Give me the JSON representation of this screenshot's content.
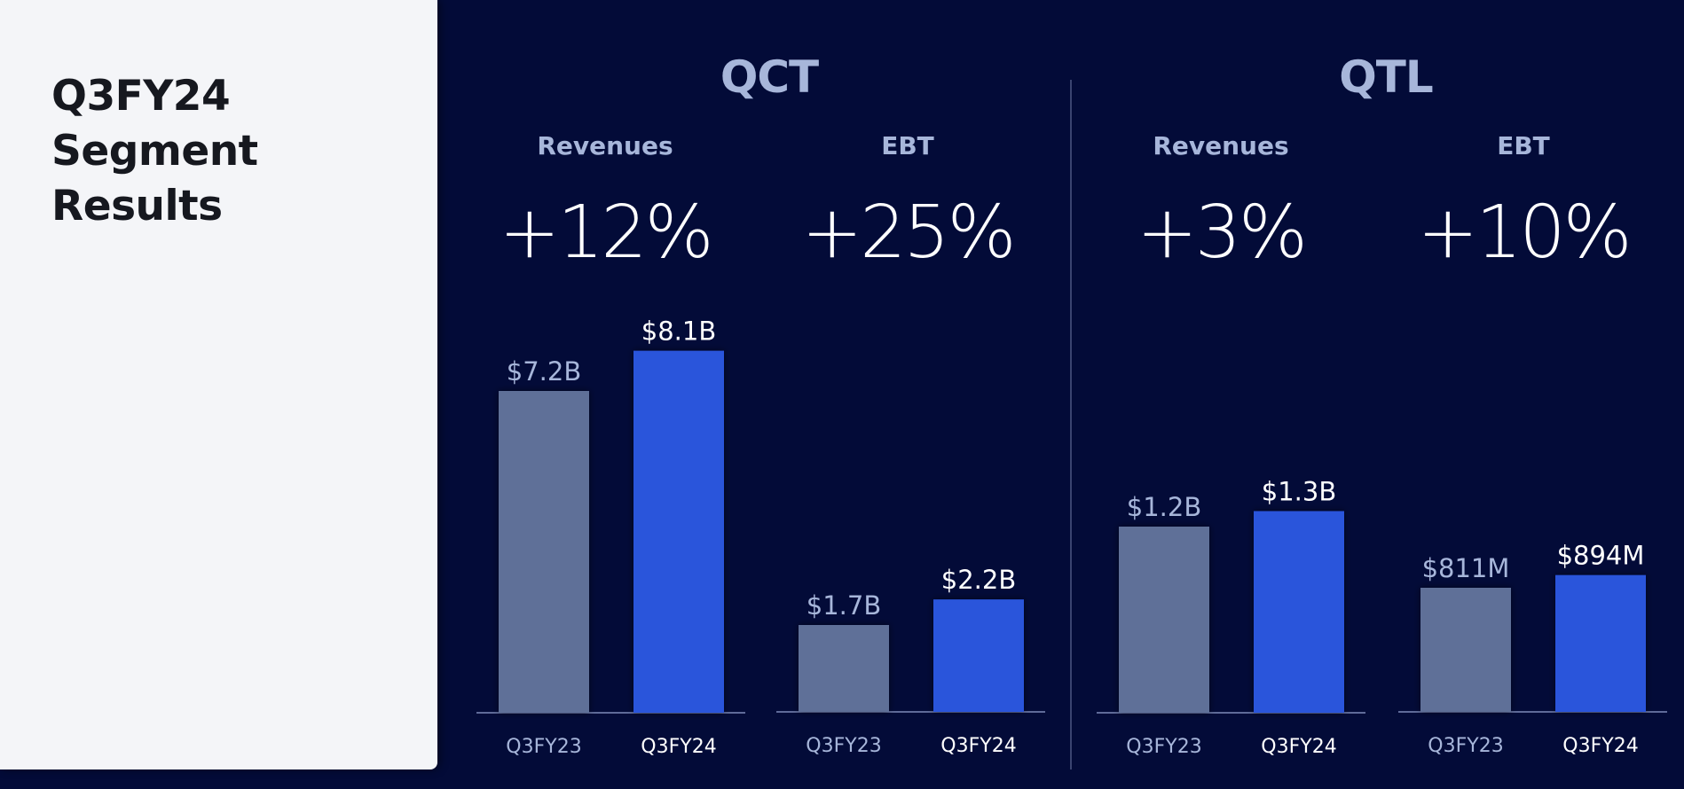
{
  "slide": {
    "title_lines": [
      "Q3FY24",
      "Segment",
      "Results"
    ]
  },
  "colors": {
    "background": "#030b38",
    "panel": "#f4f5f8",
    "prior_bar": "#5f7098",
    "current_bar": "#2b55db",
    "prior_label": "#a7b6da",
    "current_label": "#ffffff",
    "baseline": "#5f6b99"
  },
  "segments": [
    {
      "name": "QCT",
      "metrics": [
        {
          "name": "Revenues",
          "growth": "+12%"
        },
        {
          "name": "EBT",
          "growth": "+25%"
        }
      ]
    },
    {
      "name": "QTL",
      "metrics": [
        {
          "name": "Revenues",
          "growth": "+3%"
        },
        {
          "name": "EBT",
          "growth": "+10%"
        }
      ]
    }
  ],
  "chart_data": [
    {
      "type": "bar",
      "segment": "QCT",
      "title": "Revenues",
      "categories": [
        "Q3FY23",
        "Q3FY24"
      ],
      "values": [
        7.2,
        8.1
      ],
      "unit": "B",
      "data_labels": [
        "$7.2B",
        "$8.1B"
      ]
    },
    {
      "type": "bar",
      "segment": "QCT",
      "title": "EBT",
      "categories": [
        "Q3FY23",
        "Q3FY24"
      ],
      "values": [
        1.7,
        2.2
      ],
      "unit": "B",
      "data_labels": [
        "$1.7B",
        "$2.2B"
      ]
    },
    {
      "type": "bar",
      "segment": "QTL",
      "title": "Revenues",
      "categories": [
        "Q3FY23",
        "Q3FY24"
      ],
      "values": [
        1.2,
        1.3
      ],
      "unit": "B",
      "data_labels": [
        "$1.2B",
        "$1.3B"
      ]
    },
    {
      "type": "bar",
      "segment": "QTL",
      "title": "EBT",
      "categories": [
        "Q3FY23",
        "Q3FY24"
      ],
      "values": [
        811,
        894
      ],
      "unit": "M",
      "data_labels": [
        "$811M",
        "$894M"
      ]
    }
  ]
}
